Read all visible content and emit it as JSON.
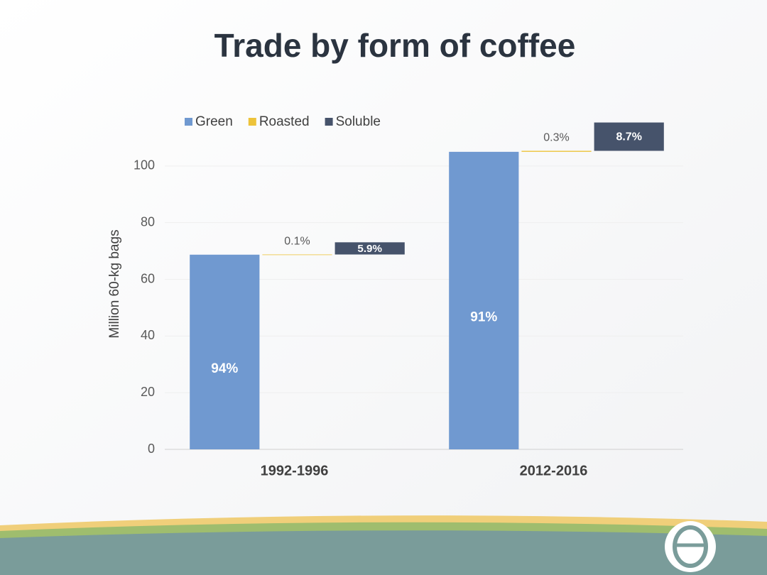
{
  "chart_data": {
    "type": "waterfall",
    "title": "Trade by form of coffee",
    "y_label": "Million 60-kg bags",
    "categories": [
      "1992-1996",
      "2012-2016"
    ],
    "series": [
      {
        "name": "Green",
        "color": "#7099d0",
        "values": [
          68.7,
          105
        ],
        "value_labels": [
          "94%",
          "91%"
        ]
      },
      {
        "name": "Roasted",
        "color": "#edc33a",
        "values": [
          0.07,
          0.35
        ],
        "value_labels": [
          "0.1%",
          "0.3%"
        ]
      },
      {
        "name": "Soluble",
        "color": "#46536b",
        "values": [
          4.3,
          10
        ],
        "value_labels": [
          "5.9%",
          "8.7%"
        ]
      }
    ],
    "ylim": [
      0,
      120
    ],
    "yticks": [
      0,
      20,
      40,
      60,
      80,
      100
    ],
    "grid": true
  }
}
